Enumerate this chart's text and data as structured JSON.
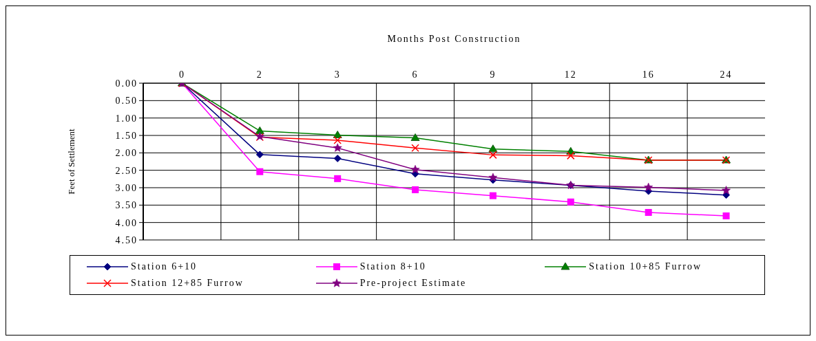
{
  "chart_data": {
    "type": "line",
    "xlabel": "Months Post Construction",
    "ylabel": "Feet of Settlement",
    "categories": [
      "0",
      "2",
      "3",
      "6",
      "9",
      "12",
      "16",
      "24"
    ],
    "series": [
      {
        "name": "Station 6+10",
        "color": "#000080",
        "marker": "diamond",
        "values": [
          0,
          2.05,
          2.16,
          2.6,
          2.78,
          2.93,
          3.1,
          3.21
        ]
      },
      {
        "name": "Station 8+10",
        "color": "#ff00ff",
        "marker": "square",
        "values": [
          0,
          2.54,
          2.74,
          3.06,
          3.23,
          3.41,
          3.71,
          3.81
        ]
      },
      {
        "name": "Station 10+85 Furrow",
        "color": "#008000",
        "marker": "triangle",
        "values": [
          0,
          1.37,
          1.49,
          1.57,
          1.89,
          1.96,
          2.21,
          2.21
        ]
      },
      {
        "name": "Station 12+85 Furrow",
        "color": "#ff0000",
        "marker": "cross",
        "values": [
          0,
          1.55,
          1.64,
          1.86,
          2.06,
          2.08,
          2.21,
          2.21
        ]
      },
      {
        "name": "Pre-project Estimate",
        "color": "#800080",
        "marker": "star",
        "values": [
          0,
          1.53,
          1.86,
          2.48,
          2.71,
          2.93,
          2.99,
          3.08
        ]
      }
    ],
    "ylim": [
      4.5,
      0
    ],
    "yticks": [
      {
        "value": 0,
        "label": "0.00"
      },
      {
        "value": 0.5,
        "label": "0.50"
      },
      {
        "value": 1,
        "label": "1.00"
      },
      {
        "value": 1.5,
        "label": "1.50"
      },
      {
        "value": 2,
        "label": "2.00"
      },
      {
        "value": 2.5,
        "label": "2.50"
      },
      {
        "value": 3,
        "label": "3.00"
      },
      {
        "value": 3.5,
        "label": "3.50"
      },
      {
        "value": 4,
        "label": "4.00"
      },
      {
        "value": 4.5,
        "label": "4.50"
      }
    ],
    "grid": true,
    "legend": "bottom",
    "line_style": "solid"
  }
}
